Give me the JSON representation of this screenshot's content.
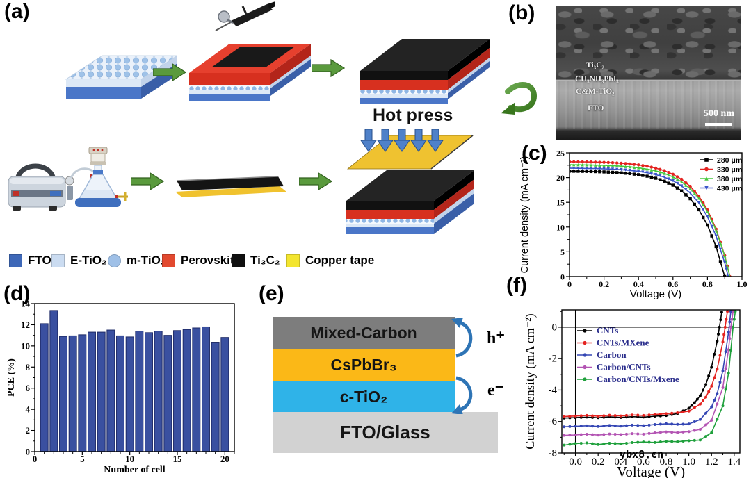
{
  "figure": {
    "panel_labels": {
      "a": "(a)",
      "b": "(b)",
      "c": "(c)",
      "d": "(d)",
      "e": "(e)",
      "f": "(f)"
    }
  },
  "panel_a": {
    "hot_press_label": "Hot press",
    "legend": [
      {
        "label": "FTO",
        "swatch": "square",
        "color": "#3E68B8"
      },
      {
        "label": "E-TiO₂",
        "swatch": "square",
        "color": "#CBDCF1"
      },
      {
        "label": "m-TiO₂",
        "swatch": "circle",
        "color": "#9FC0E7"
      },
      {
        "label": "Perovskite",
        "swatch": "square",
        "color": "#E2492F"
      },
      {
        "label": "Ti₃C₂",
        "swatch": "square",
        "color": "#101010"
      },
      {
        "label": "Copper tape",
        "swatch": "square",
        "color": "#F3E52F"
      }
    ]
  },
  "panel_b": {
    "annotations": [
      "Ti₃C₂",
      "CH₃NH₃PbI₃",
      "C&M-TiO₂",
      "FTO"
    ],
    "scale_bar_label": "500 nm"
  },
  "panel_e": {
    "layers": [
      {
        "name": "Mixed-Carbon",
        "color": "#7D7D7D"
      },
      {
        "name": "CsPbBr₃",
        "color": "#FBB817"
      },
      {
        "name": "c-TiO₂",
        "color": "#2FB3E8"
      }
    ],
    "substrate": {
      "name": "FTO/Glass",
      "color": "#D2D2D2"
    },
    "hole_label": "h⁺",
    "electron_label": "e⁻",
    "arrow_color": "#2E74B5"
  },
  "watermark": "ybx8.cn",
  "chart_data": [
    {
      "id": "c",
      "type": "line",
      "xlabel": "Voltage (V)",
      "ylabel": "Current density (mA cm⁻²)",
      "xlim": [
        0,
        1.0
      ],
      "ylim": [
        0,
        25
      ],
      "xticks": [
        0,
        0.2,
        0.4,
        0.6,
        0.8,
        1.0
      ],
      "xtick_labels": [
        "0",
        "0.2",
        "0.4",
        "0.6",
        "0.8",
        "1.0"
      ],
      "yticks": [
        0,
        5,
        10,
        15,
        20,
        25
      ],
      "ytick_labels": [
        "0",
        "5",
        "10",
        "15",
        "20",
        "25"
      ],
      "xminor": 0.1,
      "yminor": 2.5,
      "grid": false,
      "legend_position": "top-right",
      "series": [
        {
          "label": "280 μm",
          "color": "#000000",
          "marker": "square",
          "x": [
            0,
            0.05,
            0.1,
            0.15,
            0.2,
            0.25,
            0.3,
            0.35,
            0.4,
            0.45,
            0.5,
            0.55,
            0.6,
            0.65,
            0.7,
            0.75,
            0.8,
            0.85,
            0.9
          ],
          "y": [
            21.3,
            21.28,
            21.25,
            21.21,
            21.15,
            21.07,
            20.96,
            20.81,
            20.59,
            20.29,
            19.87,
            19.28,
            18.46,
            17.32,
            15.72,
            13.5,
            10.39,
            6.05,
            0
          ]
        },
        {
          "label": "330 μm",
          "color": "#E42320",
          "marker": "circle",
          "x": [
            0,
            0.05,
            0.1,
            0.15,
            0.2,
            0.25,
            0.3,
            0.35,
            0.4,
            0.45,
            0.5,
            0.55,
            0.6,
            0.65,
            0.7,
            0.75,
            0.8,
            0.85,
            0.9,
            0.93
          ],
          "y": [
            23.2,
            23.18,
            23.16,
            23.12,
            23.07,
            23.0,
            22.9,
            22.76,
            22.57,
            22.3,
            21.92,
            21.4,
            20.67,
            19.65,
            18.23,
            16.24,
            13.47,
            9.6,
            4.26,
            0
          ]
        },
        {
          "label": "380 μm",
          "color": "#47C83F",
          "marker": "triangle-up",
          "x": [
            0,
            0.05,
            0.1,
            0.15,
            0.2,
            0.25,
            0.3,
            0.35,
            0.4,
            0.45,
            0.5,
            0.55,
            0.6,
            0.65,
            0.7,
            0.75,
            0.8,
            0.85,
            0.9,
            0.93
          ],
          "y": [
            22.6,
            22.58,
            22.56,
            22.52,
            22.47,
            22.4,
            22.31,
            22.17,
            21.99,
            21.72,
            21.36,
            20.85,
            20.14,
            19.14,
            17.75,
            15.82,
            13.12,
            9.36,
            4.15,
            0
          ]
        },
        {
          "label": "430 μm",
          "color": "#3A55C9",
          "marker": "triangle-down",
          "x": [
            0,
            0.05,
            0.1,
            0.15,
            0.2,
            0.25,
            0.3,
            0.35,
            0.4,
            0.45,
            0.5,
            0.55,
            0.6,
            0.65,
            0.7,
            0.75,
            0.8,
            0.85,
            0.9,
            0.92
          ],
          "y": [
            21.9,
            21.88,
            21.85,
            21.82,
            21.77,
            21.7,
            21.6,
            21.46,
            21.26,
            20.99,
            20.61,
            20.09,
            19.35,
            18.32,
            16.88,
            14.89,
            12.09,
            8.19,
            2.8,
            0
          ]
        }
      ]
    },
    {
      "id": "d",
      "type": "bar",
      "xlabel": "Number of cell",
      "ylabel": "PCE (%)",
      "xlim": [
        0,
        21
      ],
      "ylim": [
        0,
        14
      ],
      "xticks": [
        0,
        5,
        10,
        15,
        20
      ],
      "xtick_labels": [
        "0",
        "5",
        "10",
        "15",
        "20"
      ],
      "yticks": [
        0,
        2,
        4,
        6,
        8,
        10,
        12,
        14
      ],
      "ytick_labels": [
        "0",
        "2",
        "4",
        "6",
        "8",
        "10",
        "12",
        "14"
      ],
      "xminor": 1,
      "yminor": 1,
      "grid": false,
      "bar_color": "#3A50A0",
      "bar_edge": "#1E2A66",
      "categories": [
        1,
        2,
        3,
        4,
        5,
        6,
        7,
        8,
        9,
        10,
        11,
        12,
        13,
        14,
        15,
        16,
        17,
        18,
        19,
        20
      ],
      "values": [
        12.1,
        13.35,
        10.9,
        10.95,
        11.05,
        11.3,
        11.3,
        11.5,
        10.95,
        10.85,
        11.4,
        11.25,
        11.4,
        11.0,
        11.45,
        11.55,
        11.7,
        11.8,
        10.35,
        10.8
      ]
    },
    {
      "id": "f",
      "type": "line",
      "xlabel": "Voltage (V)",
      "ylabel": "Current density (mA cm⁻²)",
      "xlim": [
        -0.12,
        1.45
      ],
      "ylim": [
        -8,
        1.1
      ],
      "xticks": [
        0,
        0.2,
        0.4,
        0.6,
        0.8,
        1.0,
        1.2,
        1.4
      ],
      "xtick_labels": [
        "0.0",
        "0.2",
        "0.4",
        "0.6",
        "0.8",
        "1.0",
        "1.2",
        "1.4"
      ],
      "yticks": [
        0,
        -2,
        -4,
        -6,
        -8
      ],
      "ytick_labels": [
        "0",
        "-2",
        "-4",
        "-6",
        "-8"
      ],
      "xminor": 0.1,
      "yminor": 1,
      "grid": false,
      "zero_lines": true,
      "legend_position": "upper-left-inside",
      "legend_text_color": "#2B2E8C",
      "series": [
        {
          "label": "CNTs",
          "color": "#000000",
          "marker": "circle",
          "x": [
            -0.1,
            0,
            0.1,
            0.2,
            0.3,
            0.4,
            0.5,
            0.6,
            0.7,
            0.8,
            0.9,
            1.0,
            1.05,
            1.1,
            1.15,
            1.2,
            1.25,
            1.27,
            1.29
          ],
          "y": [
            -5.78,
            -5.75,
            -5.72,
            -5.76,
            -5.7,
            -5.74,
            -5.69,
            -5.72,
            -5.66,
            -5.62,
            -5.49,
            -5.15,
            -4.8,
            -4.36,
            -3.64,
            -2.55,
            -0.89,
            0,
            0.95
          ]
        },
        {
          "label": "CNTs/MXene",
          "color": "#E42320",
          "marker": "circle",
          "x": [
            -0.1,
            0,
            0.1,
            0.2,
            0.3,
            0.4,
            0.5,
            0.6,
            0.7,
            0.8,
            0.9,
            1.0,
            1.1,
            1.15,
            1.2,
            1.25,
            1.3,
            1.32,
            1.34
          ],
          "y": [
            -5.68,
            -5.65,
            -5.61,
            -5.66,
            -5.6,
            -5.64,
            -5.58,
            -5.61,
            -5.55,
            -5.5,
            -5.44,
            -5.34,
            -4.89,
            -4.45,
            -3.75,
            -2.66,
            -0.94,
            0,
            1.0
          ]
        },
        {
          "label": "Carbon",
          "color": "#3446B4",
          "marker": "circle",
          "x": [
            -0.1,
            0,
            0.1,
            0.2,
            0.3,
            0.4,
            0.5,
            0.6,
            0.7,
            0.8,
            0.9,
            1.0,
            1.1,
            1.2,
            1.25,
            1.3,
            1.35,
            1.37
          ],
          "y": [
            -6.33,
            -6.3,
            -6.27,
            -6.31,
            -6.25,
            -6.29,
            -6.23,
            -6.26,
            -6.19,
            -6.14,
            -6.18,
            -6.15,
            -5.87,
            -5.07,
            -4.22,
            -2.78,
            -0.33,
            1.0
          ]
        },
        {
          "label": "Carbon/CNTs",
          "color": "#B354B3",
          "marker": "circle",
          "x": [
            -0.1,
            0,
            0.1,
            0.2,
            0.3,
            0.4,
            0.5,
            0.6,
            0.7,
            0.8,
            0.9,
            1.0,
            1.1,
            1.2,
            1.3,
            1.35,
            1.37,
            1.39
          ],
          "y": [
            -6.88,
            -6.85,
            -6.81,
            -6.86,
            -6.79,
            -6.83,
            -6.77,
            -6.8,
            -6.72,
            -6.66,
            -6.7,
            -6.64,
            -6.5,
            -5.92,
            -3.84,
            -1.43,
            0,
            1.0
          ]
        },
        {
          "label": "Carbon/CNTs/Mxene",
          "color": "#1FA03C",
          "marker": "circle",
          "x": [
            -0.1,
            0,
            0.1,
            0.2,
            0.3,
            0.4,
            0.5,
            0.6,
            0.7,
            0.8,
            0.9,
            1.0,
            1.1,
            1.2,
            1.3,
            1.35,
            1.39,
            1.41
          ],
          "y": [
            -7.5,
            -7.4,
            -7.36,
            -7.46,
            -7.38,
            -7.42,
            -7.34,
            -7.3,
            -7.33,
            -7.26,
            -7.28,
            -7.22,
            -7.18,
            -6.71,
            -5.0,
            -2.92,
            0,
            1.0
          ]
        }
      ]
    }
  ]
}
